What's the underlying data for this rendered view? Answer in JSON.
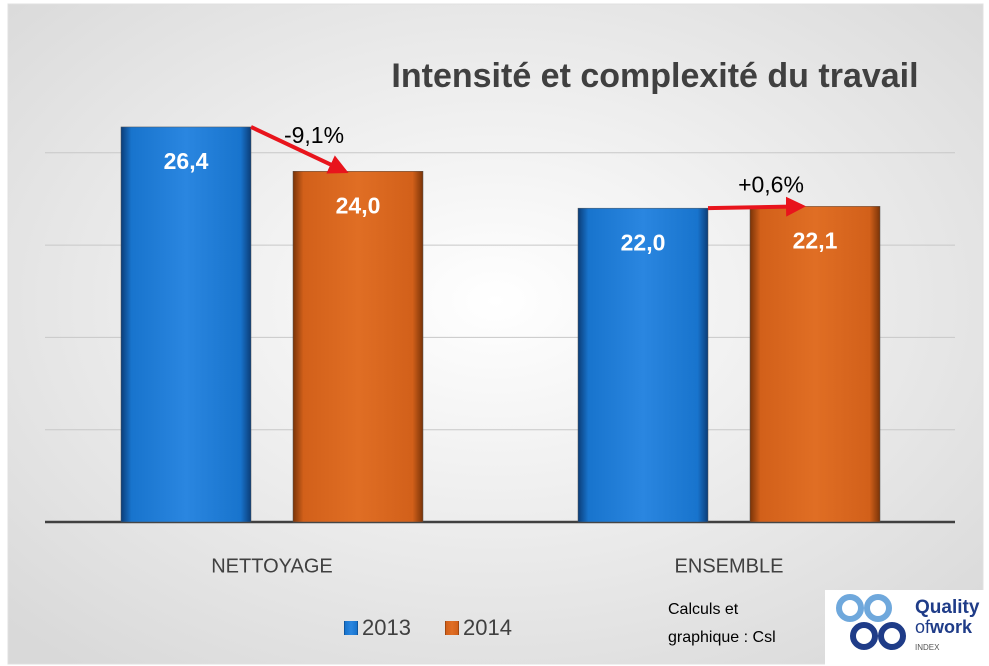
{
  "chart_data": {
    "type": "bar",
    "title": "Intensité et complexité du travail",
    "categories": [
      "NETTOYAGE",
      "ENSEMBLE"
    ],
    "series": [
      {
        "name": "2013",
        "color": "#1874cd",
        "values": [
          26.4,
          22.0
        ],
        "value_labels": [
          "26,4",
          "22,0"
        ]
      },
      {
        "name": "2014",
        "color": "#d2601a",
        "values": [
          24.0,
          22.1
        ],
        "value_labels": [
          "24,0",
          "22,1"
        ]
      }
    ],
    "annotations": [
      "-9,1%",
      "+0,6%"
    ],
    "ylim": [
      5,
      30
    ],
    "yticks": [
      5,
      10,
      15,
      20,
      25
    ],
    "grid": true,
    "legend": "bottom",
    "source": [
      "Calculs et",
      "graphique : Csl"
    ],
    "logo": {
      "line1": "Quality",
      "line2": "of",
      "line3": "work",
      "line4": "INDEX"
    }
  }
}
